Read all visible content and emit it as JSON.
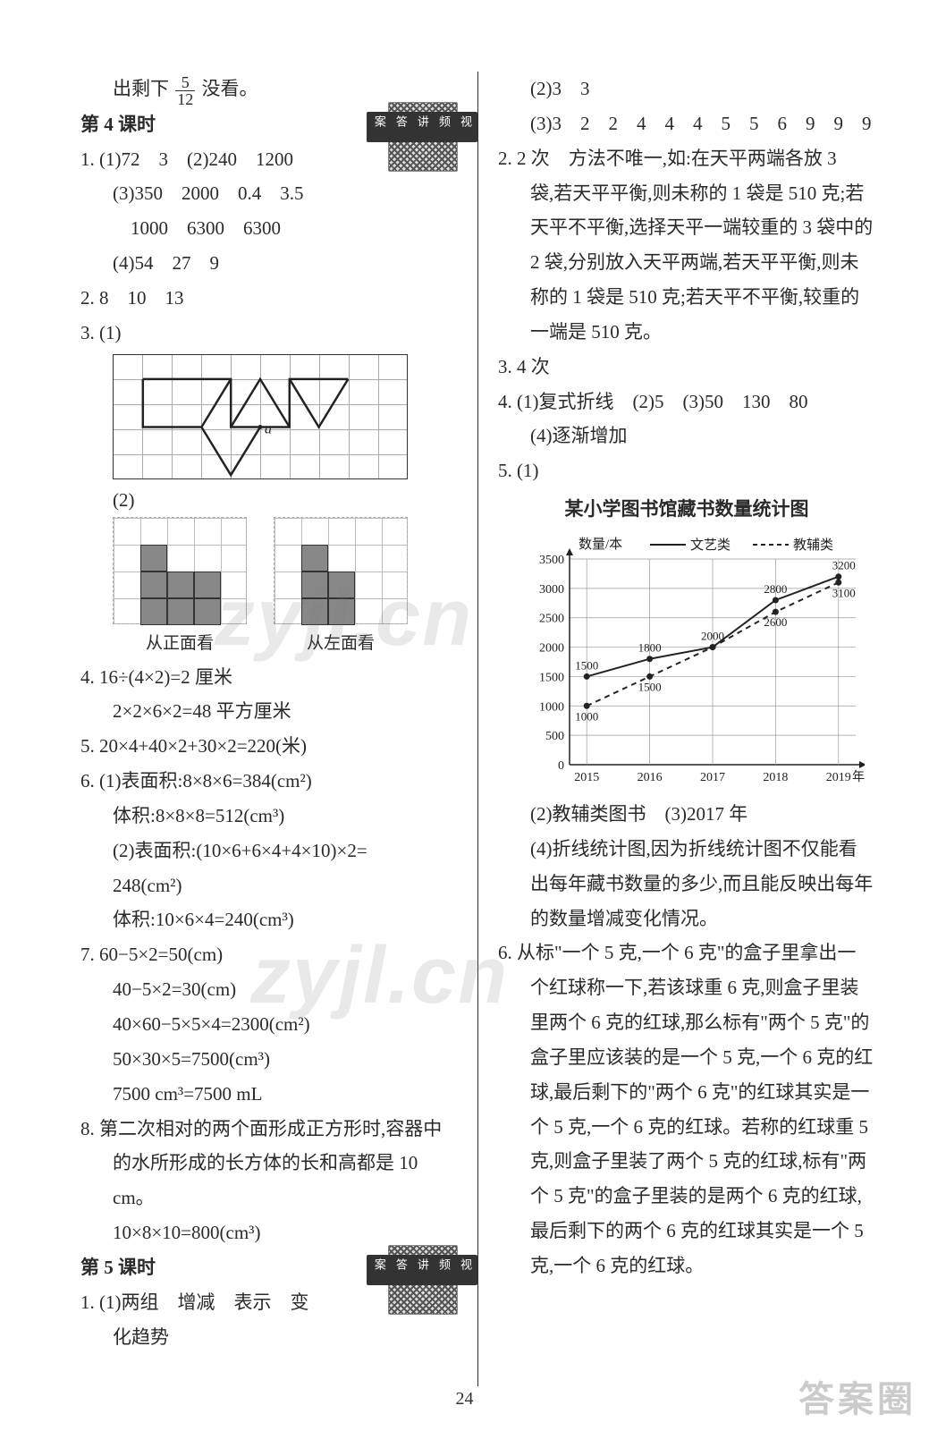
{
  "left": {
    "intro": "出剩下",
    "intro_frac_n": "5",
    "intro_frac_d": "12",
    "intro_tail": "没看。",
    "sec4": "第 4 课时",
    "qr_label": "视频讲答案",
    "q1_1": "1. (1)72　3　(2)240　1200",
    "q1_3": "(3)350　2000　0.4　3.5",
    "q1_3b": "1000　6300　6300",
    "q1_4": "(4)54　27　9",
    "q2": "2. 8　10　13",
    "q3": "3. (1)",
    "q3_2": "(2)",
    "view_front": "从正面看",
    "view_left": "从左面看",
    "q4a": "4. 16÷(4×2)=2 厘米",
    "q4b": "2×2×6×2=48 平方厘米",
    "q5": "5. 20×4+40×2+30×2=220(米)",
    "q6_1a": "6. (1)表面积:8×8×6=384(cm²)",
    "q6_1b": "体积:8×8×8=512(cm³)",
    "q6_2a": "(2)表面积:(10×6+6×4+4×10)×2=",
    "q6_2b": "248(cm²)",
    "q6_2c": "体积:10×6×4=240(cm³)",
    "q7a": "7. 60−5×2=50(cm)",
    "q7b": "40−5×2=30(cm)",
    "q7c": "40×60−5×5×4=2300(cm²)",
    "q7d": "50×30×5=7500(cm³)",
    "q7e": "7500 cm³=7500 mL",
    "q8a": "8. 第二次相对的两个面形成正方形时,容器中",
    "q8b": "的水所形成的长方体的长和高都是 10 cm。",
    "q8c": "10×8×10=800(cm³)",
    "sec5": "第 5 课时",
    "q5_1a": "1. (1)两组　增减　表示　变",
    "q5_1b": "化趋势"
  },
  "right": {
    "r2": "(2)3　3",
    "r3": "(3)3　2　2　4　4　4　5　5　6　9　9　9",
    "q2a": "2. 2 次　方法不唯一,如:在天平两端各放 3",
    "q2b": "袋,若天平平衡,则未称的 1 袋是 510 克;若",
    "q2c": "天平不平衡,选择天平一端较重的 3 袋中的",
    "q2d": "2 袋,分别放入天平两端,若天平平衡,则未",
    "q2e": "称的 1 袋是 510 克;若天平不平衡,较重的",
    "q2f": "一端是 510 克。",
    "q3": "3. 4 次",
    "q4a": "4. (1)复式折线　(2)5　(3)50　130　80",
    "q4b": "(4)逐渐增加",
    "q5": "5. (1)",
    "chart_title": "某小学图书馆藏书数量统计图",
    "chart": {
      "ylabel": "数量/本",
      "legend_solid": "文艺类",
      "legend_dash": "教辅类",
      "yticks": [
        "0",
        "500",
        "1000",
        "1500",
        "2000",
        "2500",
        "3000",
        "3500"
      ],
      "xticks": [
        "2015",
        "2016",
        "2017",
        "2018",
        "2019",
        "年份"
      ],
      "series_solid": [
        {
          "x": "2015",
          "y": 1500,
          "label": "1500"
        },
        {
          "x": "2016",
          "y": 1800,
          "label": "1800"
        },
        {
          "x": "2017",
          "y": 2000,
          "label": "2000"
        },
        {
          "x": "2018",
          "y": 2800,
          "label": "2800"
        },
        {
          "x": "2019",
          "y": 3200,
          "label": "3200"
        }
      ],
      "series_dash": [
        {
          "x": "2015",
          "y": 1000,
          "label": "1000"
        },
        {
          "x": "2016",
          "y": 1500,
          "label": "1500"
        },
        {
          "x": "2017",
          "y": 2000,
          "label": ""
        },
        {
          "x": "2018",
          "y": 2600,
          "label": "2600"
        },
        {
          "x": "2019",
          "y": 3100,
          "label": "3100"
        }
      ],
      "ylim": [
        0,
        3500
      ],
      "axis_color": "#222",
      "grid_color": "#999",
      "solid_color": "#222",
      "dash_color": "#222",
      "font_size": 16
    },
    "q5_2": "(2)教辅类图书　(3)2017 年",
    "q5_4a": "(4)折线统计图,因为折线统计图不仅能看",
    "q5_4b": "出每年藏书数量的多少,而且能反映出每年",
    "q5_4c": "的数量增减变化情况。",
    "q6a": "6. 从标\"一个 5 克,一个 6 克\"的盒子里拿出一",
    "q6b": "个红球称一下,若该球重 6 克,则盒子里装",
    "q6c": "里两个 6 克的红球,那么标有\"两个 5 克\"的",
    "q6d": "盒子里应该装的是一个 5 克,一个 6 克的红",
    "q6e": "球,最后剩下的\"两个 6 克\"的红球其实是一",
    "q6f": "个 5 克,一个 6 克的红球。若称的红球重 5",
    "q6g": "克,则盒子里装了两个 5 克的红球,标有\"两",
    "q6h": "个 5 克\"的盒子里装的是两个 6 克的红球,",
    "q6i": "最后剩下的两个 6 克的红球其实是一个 5",
    "q6j": "克,一个 6 克的红球。"
  },
  "page_number": "24",
  "watermark": "zyjl.cn",
  "logo": "答案圈"
}
